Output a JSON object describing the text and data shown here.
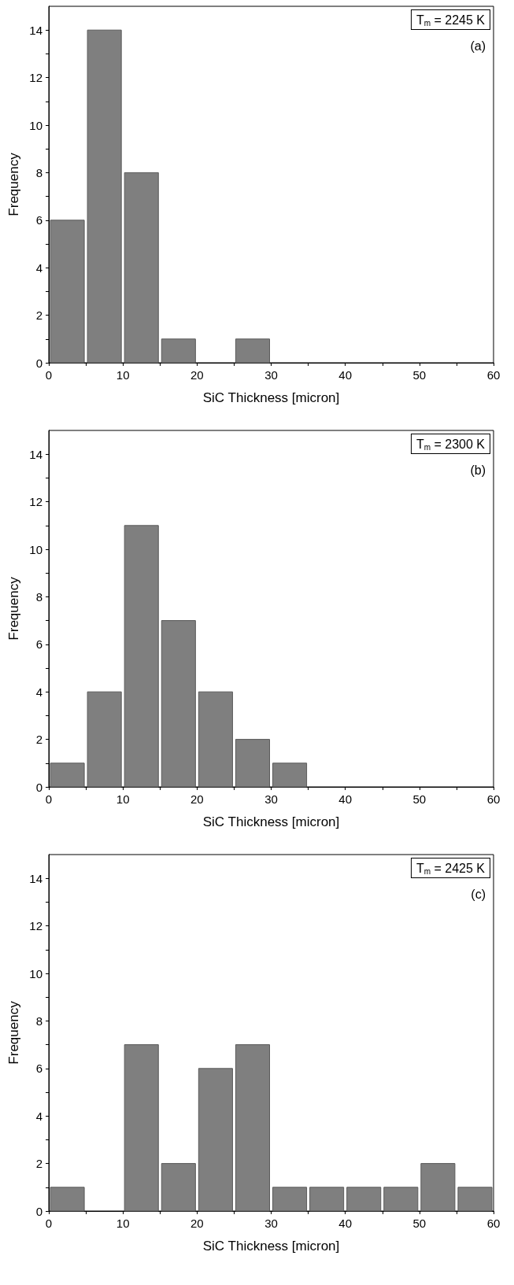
{
  "chart_data": [
    {
      "type": "histogram",
      "xlabel": "SiC Thickness [micron]",
      "ylabel": "Frequency",
      "annotations": [
        "T$_{m}$ = 2245 K",
        "(a)"
      ],
      "bins": [
        0,
        5,
        10,
        15,
        20,
        25,
        30,
        35,
        40,
        45,
        50,
        55,
        60
      ],
      "values": [
        6,
        14,
        8,
        1,
        0,
        1,
        0,
        0,
        0,
        0,
        0,
        0
      ],
      "color": "#7f7f7f",
      "xlim": [
        0,
        60
      ],
      "xticks": [
        0,
        10,
        20,
        30,
        40,
        50,
        60
      ],
      "ylim": [
        0,
        15
      ],
      "yticks": [
        0,
        2,
        4,
        6,
        8,
        10,
        12,
        14
      ],
      "grid": false
    },
    {
      "type": "histogram",
      "xlabel": "SiC Thickness [micron]",
      "ylabel": "Frequency",
      "annotations": [
        "T$_{m}$ = 2300 K",
        "(b)"
      ],
      "bins": [
        0,
        5,
        10,
        15,
        20,
        25,
        30,
        35,
        40,
        45,
        50,
        55,
        60
      ],
      "values": [
        1,
        4,
        11,
        7,
        4,
        2,
        1,
        0,
        0,
        0,
        0,
        0
      ],
      "color": "#7f7f7f",
      "xlim": [
        0,
        60
      ],
      "xticks": [
        0,
        10,
        20,
        30,
        40,
        50,
        60
      ],
      "ylim": [
        0,
        15
      ],
      "yticks": [
        0,
        2,
        4,
        6,
        8,
        10,
        12,
        14
      ],
      "grid": false
    },
    {
      "type": "histogram",
      "xlabel": "SiC Thickness [micron]",
      "ylabel": "Frequency",
      "annotations": [
        "T$_{m}$ = 2425 K",
        "(c)"
      ],
      "bins": [
        0,
        5,
        10,
        15,
        20,
        25,
        30,
        35,
        40,
        45,
        50,
        55,
        60
      ],
      "values": [
        1,
        0,
        7,
        2,
        6,
        7,
        1,
        1,
        1,
        1,
        2,
        1
      ],
      "color": "#7f7f7f",
      "xlim": [
        0,
        60
      ],
      "xticks": [
        0,
        10,
        20,
        30,
        40,
        50,
        60
      ],
      "ylim": [
        0,
        15
      ],
      "yticks": [
        0,
        2,
        4,
        6,
        8,
        10,
        12,
        14
      ],
      "grid": false
    }
  ]
}
